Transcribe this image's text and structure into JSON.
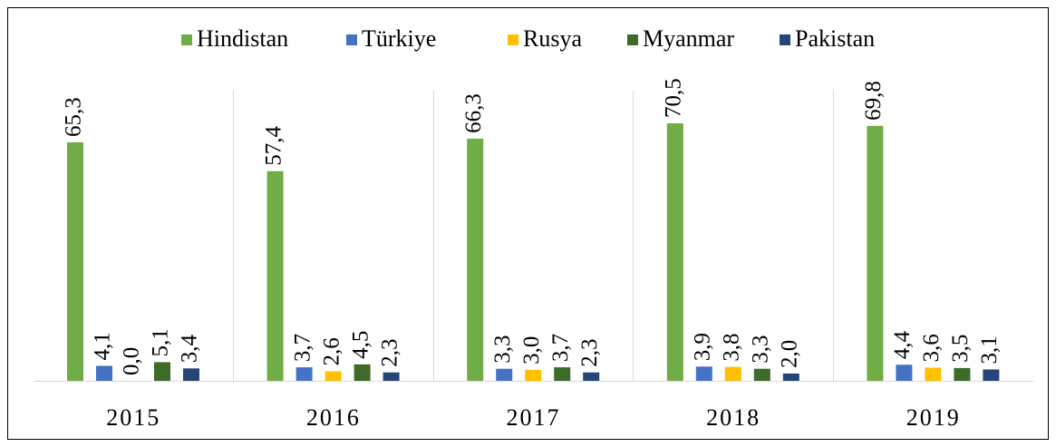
{
  "chart_data": {
    "type": "bar",
    "categories": [
      "2015",
      "2016",
      "2017",
      "2018",
      "2019"
    ],
    "series": [
      {
        "name": "Hindistan",
        "color": "#70ad47",
        "values": [
          65.3,
          57.4,
          66.3,
          70.5,
          69.8
        ],
        "value_labels": [
          "65,3",
          "57,4",
          "66,3",
          "70,5",
          "69,8"
        ]
      },
      {
        "name": "Türkiye",
        "color": "#4472c4",
        "values": [
          4.1,
          3.7,
          3.3,
          3.9,
          4.4
        ],
        "value_labels": [
          "4,1",
          "3,7",
          "3,3",
          "3,9",
          "4,4"
        ]
      },
      {
        "name": "Rusya",
        "color": "#ffc000",
        "values": [
          0.0,
          2.6,
          3.0,
          3.8,
          3.6
        ],
        "value_labels": [
          "0,0",
          "2,6",
          "3,0",
          "3,8",
          "3,6"
        ]
      },
      {
        "name": "Myanmar",
        "color": "#3e6b2a",
        "values": [
          5.1,
          4.5,
          3.7,
          3.3,
          3.5
        ],
        "value_labels": [
          "5,1",
          "4,5",
          "3,7",
          "3,3",
          "3,5"
        ]
      },
      {
        "name": "Pakistan",
        "color": "#264478",
        "values": [
          3.4,
          2.3,
          2.3,
          2.0,
          3.1
        ],
        "value_labels": [
          "3,4",
          "2,3",
          "2,3",
          "2,0",
          "3,1"
        ]
      }
    ],
    "legend": "top"
  }
}
